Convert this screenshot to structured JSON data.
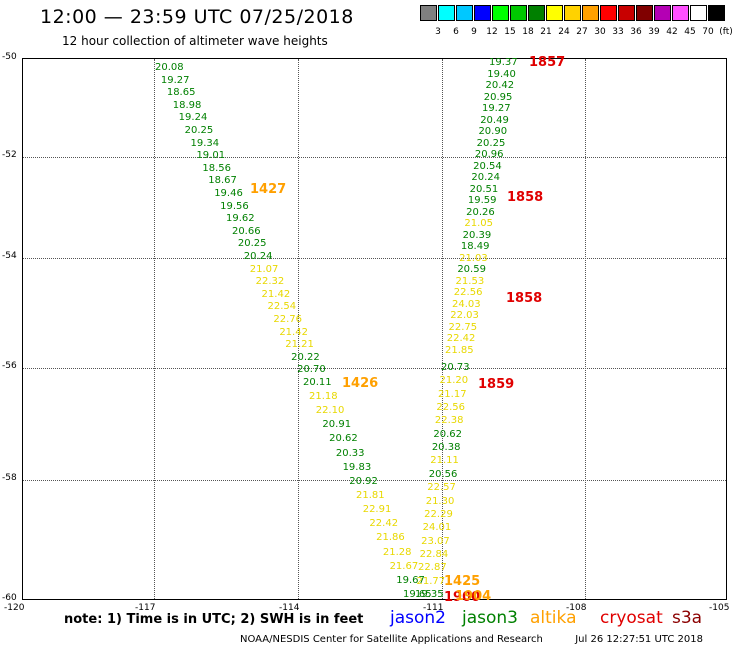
{
  "header": {
    "title": "12:00 — 23:59 UTC 07/25/2018",
    "subtitle": "12 hour collection of altimeter wave heights"
  },
  "colorbar": {
    "colors": [
      "#808080",
      "#00ffff",
      "#00c8ff",
      "#0000ff",
      "#00ff00",
      "#00c800",
      "#008000",
      "#ffff00",
      "#ffd200",
      "#ffa000",
      "#ff0000",
      "#c80000",
      "#800000",
      "#b400b4",
      "#ff50ff",
      "#ffffff",
      "#000000"
    ],
    "labels": [
      "3",
      "6",
      "9",
      "12",
      "15",
      "18",
      "21",
      "24",
      "27",
      "30",
      "33",
      "36",
      "39",
      "42",
      "45",
      "70",
      "(ft)"
    ]
  },
  "map": {
    "x_labels": [
      "-120",
      "-117",
      "-114",
      "-111",
      "-108",
      "-105"
    ],
    "y_labels": [
      "-50",
      "-52",
      "-54",
      "-56",
      "-58",
      "-60"
    ]
  },
  "tracks": {
    "west": [
      "20.08",
      "19.27",
      "18.65",
      "18.98",
      "19.24",
      "20.25",
      "19.34",
      "19.01",
      "18.56",
      "18.67",
      "19.46",
      "19.56",
      "19.62",
      "20.66",
      "20.25",
      "20.24",
      "21.07",
      "22.32",
      "21.42",
      "22.54",
      "22.76",
      "21.42",
      "21.21",
      "20.22",
      "20.70",
      "20.11",
      "21.18",
      "22.10",
      "20.91",
      "20.62",
      "20.33",
      "19.83",
      "20.92",
      "21.81",
      "22.91",
      "22.42",
      "21.86",
      "21.28",
      "21.67",
      "19.67",
      "19.65"
    ],
    "east": [
      "19.37",
      "19.40",
      "20.42",
      "20.95",
      "19.27",
      "20.49",
      "20.90",
      "20.25",
      "20.96",
      "20.54",
      "20.24",
      "20.51",
      "19.59",
      "20.26",
      "21.05",
      "20.39",
      "18.49",
      "21.03",
      "20.59",
      "21.53",
      "22.56",
      "24.03",
      "22.03",
      "22.75",
      "22.42",
      "21.85",
      "20.73",
      "21.20",
      "21.17",
      "22.56",
      "22.38",
      "20.62",
      "20.38",
      "21.11",
      "20.56",
      "22.57",
      "21.30",
      "22.29",
      "24.01",
      "23.07",
      "22.84",
      "22.87",
      "21.77",
      "19.35"
    ]
  },
  "annotations": [
    "1857",
    "1427",
    "1858",
    "1858",
    "1426",
    "1859",
    "1425",
    "1900",
    "1904"
  ],
  "note": "note:  1) Time is in UTC;  2) SWH is in feet",
  "legend": {
    "jason2": "jason2",
    "jason3": "jason3",
    "altika": "altika",
    "cryosat": "cryosat",
    "s3a": "s3a"
  },
  "footer": {
    "center": "NOAA/NESDIS Center for Satellite Applications and Research",
    "timestamp": "Jul 26 12:27:51 UTC 2018"
  }
}
